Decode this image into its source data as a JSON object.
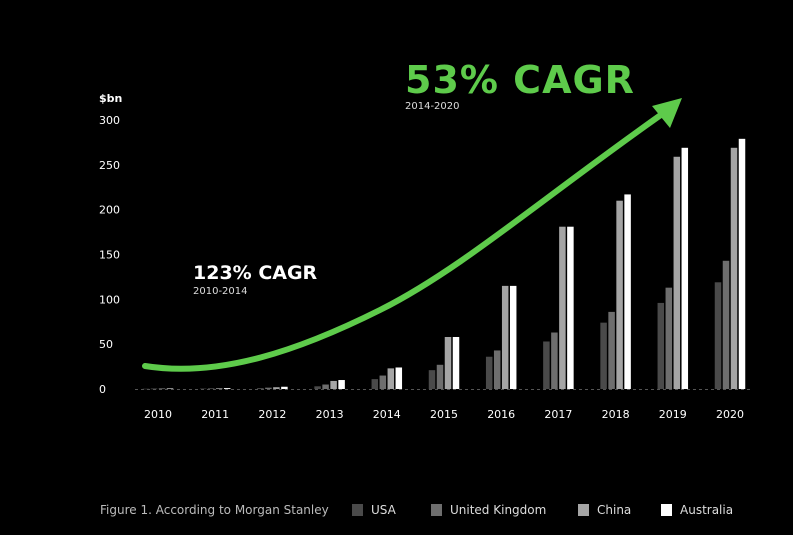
{
  "chart_data": {
    "type": "bar",
    "ylabel": "$bn",
    "ylim": [
      0,
      300
    ],
    "yticks": [
      0,
      50,
      100,
      150,
      200,
      250,
      300
    ],
    "categories": [
      "2010",
      "2011",
      "2012",
      "2013",
      "2014",
      "2015",
      "2016",
      "2017",
      "2018",
      "2019",
      "2020"
    ],
    "series": [
      {
        "name": "USA",
        "color": "#4a4a4a",
        "values": [
          0.3,
          0.5,
          1,
          3,
          11,
          21,
          36,
          53,
          74,
          96,
          119
        ]
      },
      {
        "name": "United Kingdom",
        "color": "#6e6e6e",
        "values": [
          0.4,
          0.6,
          1.5,
          5,
          15,
          27,
          43,
          63,
          86,
          113,
          143
        ]
      },
      {
        "name": "China",
        "color": "#a5a5a5",
        "values": [
          0.5,
          0.8,
          2,
          9,
          23,
          58,
          115,
          181,
          210,
          259,
          269
        ]
      },
      {
        "name": "Australia",
        "color": "#ffffff",
        "values": [
          0.6,
          1,
          2.5,
          10,
          24,
          58,
          115,
          181,
          217,
          269,
          279
        ]
      }
    ],
    "annotations": [
      {
        "title": "53% CAGR",
        "subtitle": "2014-2020"
      },
      {
        "title": "123% CAGR",
        "subtitle": "2010-2014"
      }
    ],
    "accent_color": "#5ecb4b"
  },
  "caption": "Figure 1. According to Morgan Stanley"
}
